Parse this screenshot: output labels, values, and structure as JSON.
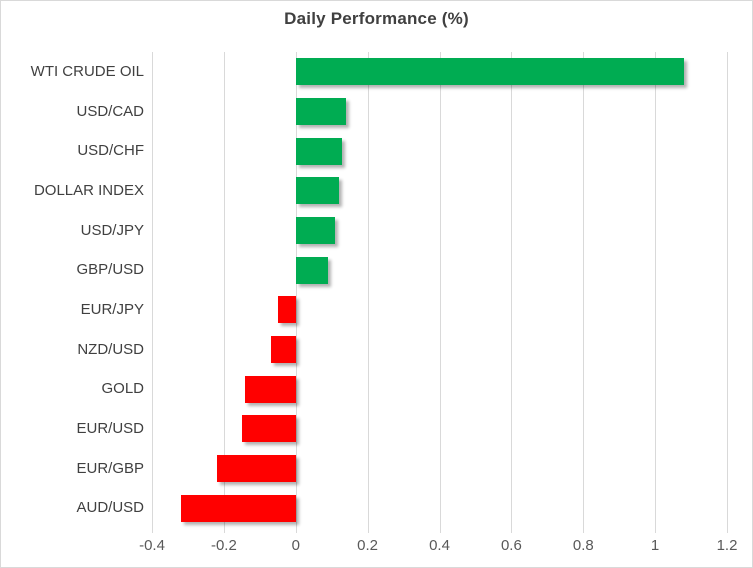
{
  "chart_data": {
    "type": "bar",
    "orientation": "horizontal",
    "title": "Daily Performance (%)",
    "categories": [
      "WTI CRUDE OIL",
      "USD/CAD",
      "USD/CHF",
      "DOLLAR INDEX",
      "USD/JPY",
      "GBP/USD",
      "EUR/JPY",
      "NZD/USD",
      "GOLD",
      "EUR/USD",
      "EUR/GBP",
      "AUD/USD"
    ],
    "values": [
      1.08,
      0.14,
      0.13,
      0.12,
      0.11,
      0.09,
      -0.05,
      -0.07,
      -0.14,
      -0.15,
      -0.22,
      -0.32
    ],
    "xlabel": "",
    "ylabel": "",
    "xlim": [
      -0.4,
      1.2
    ],
    "x_ticks": [
      -0.4,
      -0.2,
      0,
      0.2,
      0.4,
      0.6,
      0.8,
      1,
      1.2
    ],
    "x_tick_labels": [
      "-0.4",
      "-0.2",
      "0",
      "0.2",
      "0.4",
      "0.6",
      "0.8",
      "1",
      "1.2"
    ],
    "grid": true,
    "legend": false,
    "colors": {
      "positive": "#00AC52",
      "negative": "#FF0000",
      "gridline": "#D9D9D9",
      "frame_border": "#D9D9D9",
      "title_text": "#404040",
      "category_text": "#404040",
      "tick_text": "#595959"
    }
  }
}
